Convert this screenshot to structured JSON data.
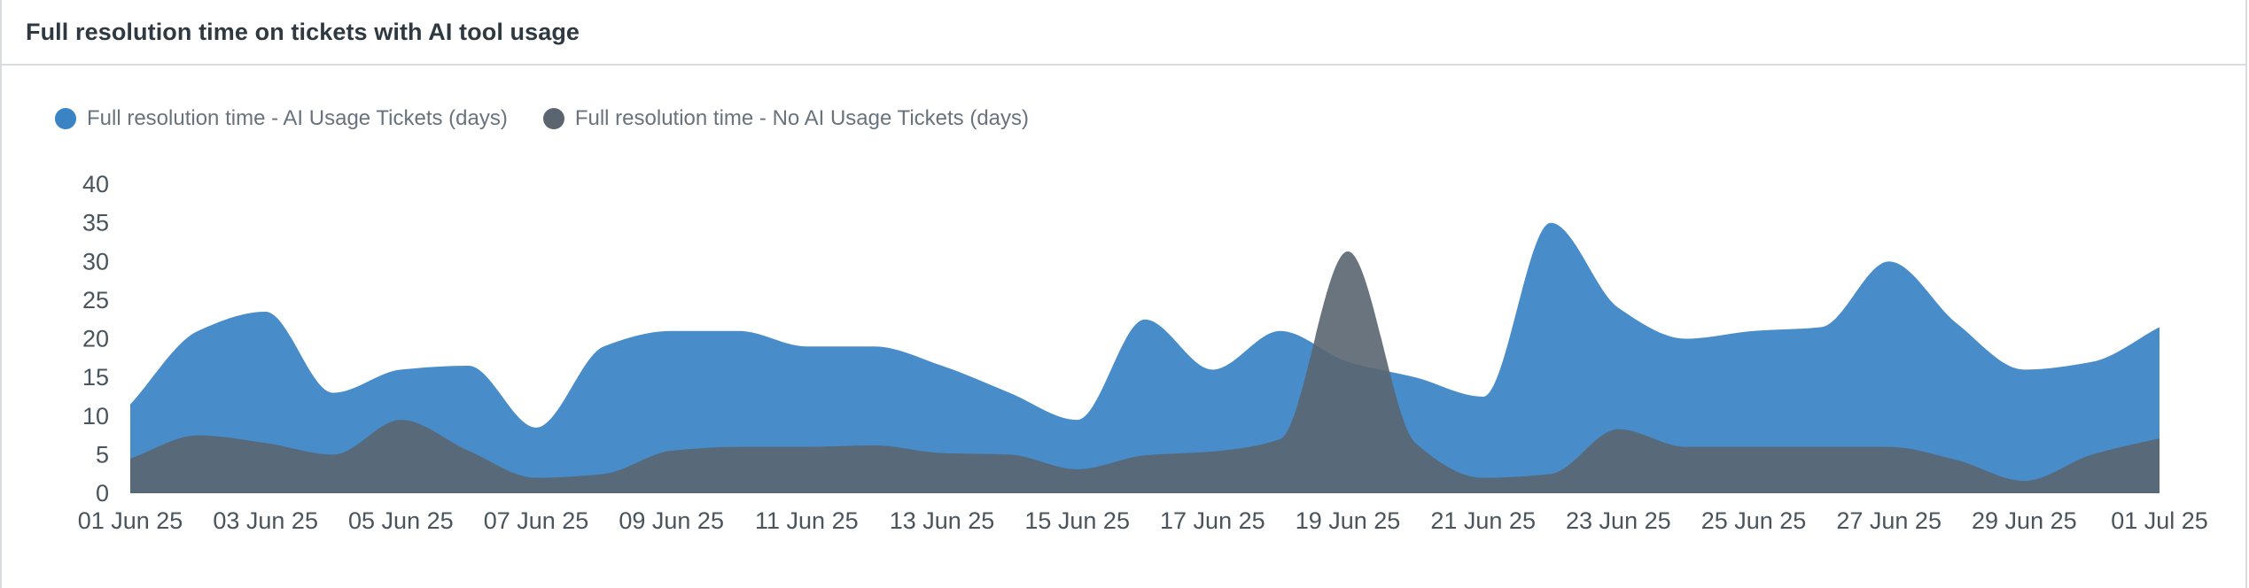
{
  "panel": {
    "title": "Full resolution time on tickets with AI tool usage"
  },
  "chart_data": {
    "type": "area",
    "title": "Full resolution time on tickets with AI tool usage",
    "xlabel": "",
    "ylabel": "",
    "ylim": [
      0,
      40
    ],
    "yticks": [
      "40",
      "35",
      "30",
      "25",
      "20",
      "15",
      "10",
      "5",
      "0"
    ],
    "xtick_labels": [
      "01 Jun 25",
      "03 Jun 25",
      "05 Jun 25",
      "07 Jun 25",
      "09 Jun 25",
      "11 Jun 25",
      "13 Jun 25",
      "15 Jun 25",
      "17 Jun 25",
      "19 Jun 25",
      "21 Jun 25",
      "23 Jun 25",
      "25 Jun 25",
      "27 Jun 25",
      "29 Jun 25",
      "01 Jul 25"
    ],
    "x": [
      "01 Jun 25",
      "02 Jun 25",
      "03 Jun 25",
      "04 Jun 25",
      "05 Jun 25",
      "06 Jun 25",
      "07 Jun 25",
      "08 Jun 25",
      "09 Jun 25",
      "10 Jun 25",
      "11 Jun 25",
      "12 Jun 25",
      "13 Jun 25",
      "14 Jun 25",
      "15 Jun 25",
      "16 Jun 25",
      "17 Jun 25",
      "18 Jun 25",
      "19 Jun 25",
      "20 Jun 25",
      "21 Jun 25",
      "22 Jun 25",
      "23 Jun 25",
      "24 Jun 25",
      "25 Jun 25",
      "26 Jun 25",
      "27 Jun 25",
      "28 Jun 25",
      "29 Jun 25",
      "30 Jun 25",
      "01 Jul 25"
    ],
    "legend_position": "top-left",
    "grid": false,
    "series": [
      {
        "name": "Full resolution time - AI Usage Tickets (days)",
        "color": "#3a84c5",
        "values": [
          11.5,
          21,
          23.5,
          13,
          16,
          16.5,
          8.5,
          19,
          21,
          21,
          19,
          19,
          16.5,
          13,
          9.5,
          22.5,
          16,
          21,
          17,
          15,
          12.5,
          35,
          24,
          20,
          21,
          21.5,
          30,
          22,
          16,
          17,
          21.5
        ]
      },
      {
        "name": "Full resolution time - No AI Usage Tickets (days)",
        "color": "#5a6570",
        "values": [
          4.5,
          7.5,
          6.5,
          5,
          9.5,
          5.5,
          2,
          2.5,
          5.5,
          6,
          6,
          6.2,
          5.2,
          5,
          3.1,
          4.9,
          5.4,
          7,
          31.3,
          6.5,
          2,
          2.5,
          8.3,
          6,
          6,
          6,
          6,
          4.3,
          1.6,
          5,
          7.1
        ]
      }
    ]
  }
}
